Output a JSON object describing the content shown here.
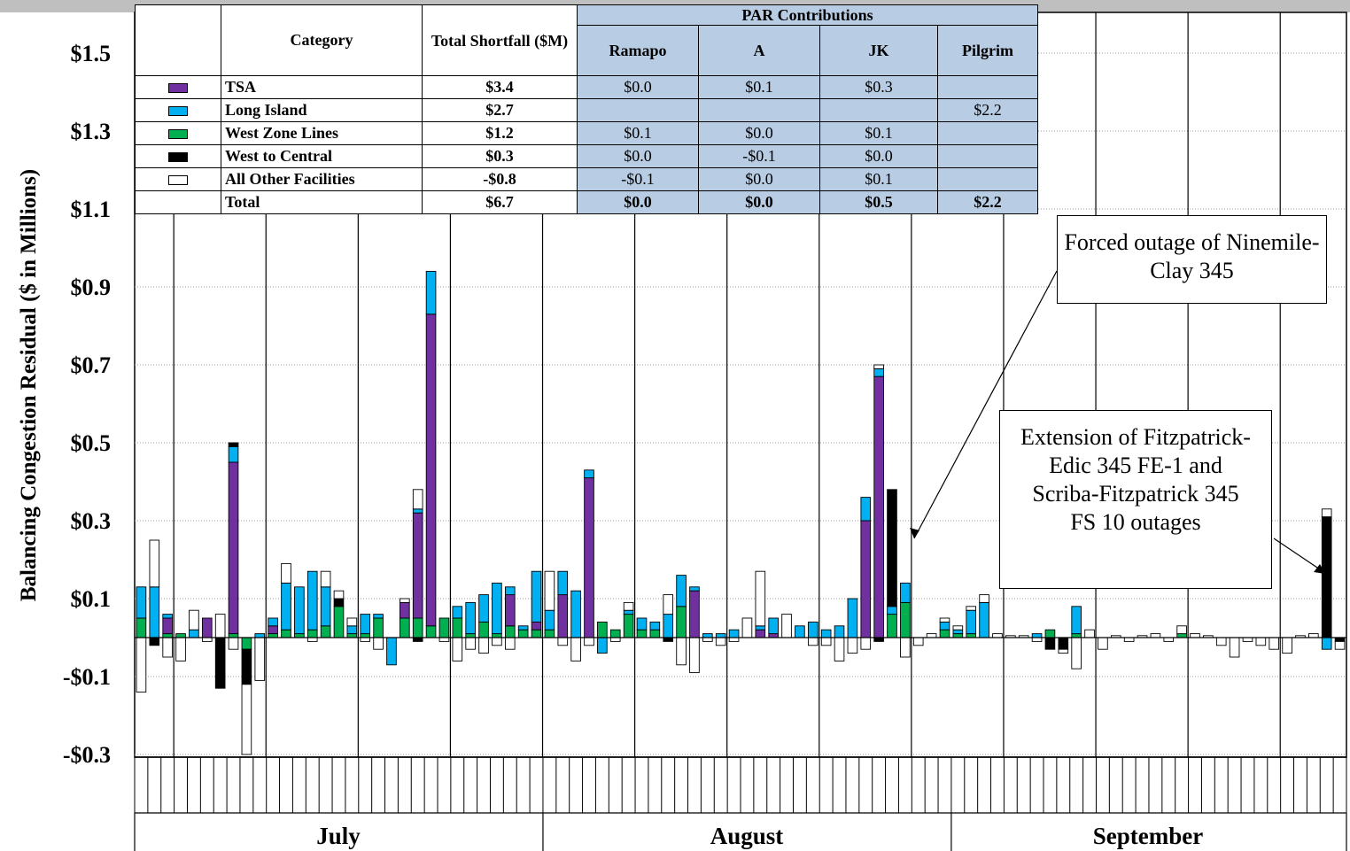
{
  "colors": {
    "TSA": "#7030a0",
    "Long Island": "#00b0f0",
    "West Zone Lines": "#00b050",
    "West to Central": "#000000",
    "All Other Facilities": "#ffffff",
    "par_header_bg": "#b8cce4"
  },
  "table": {
    "header": {
      "category": "Category",
      "total": "Total Shortfall ($M)",
      "par": "PAR Contributions",
      "ramapo": "Ramapo",
      "a": "A",
      "jk": "JK",
      "pilgrim": "Pilgrim"
    },
    "rows": [
      {
        "category": "TSA",
        "total": "$3.4",
        "ramapo": "$0.0",
        "a": "$0.1",
        "jk": "$0.3",
        "pilgrim": ""
      },
      {
        "category": "Long Island",
        "total": "$2.7",
        "ramapo": "",
        "a": "",
        "jk": "",
        "pilgrim": "$2.2"
      },
      {
        "category": "West Zone Lines",
        "total": "$1.2",
        "ramapo": "$0.1",
        "a": "$0.0",
        "jk": "$0.1",
        "pilgrim": ""
      },
      {
        "category": "West to Central",
        "total": "$0.3",
        "ramapo": "$0.0",
        "a": "-$0.1",
        "jk": "$0.0",
        "pilgrim": ""
      },
      {
        "category": "All Other Facilities",
        "total": "-$0.8",
        "ramapo": "-$0.1",
        "a": "$0.0",
        "jk": "$0.1",
        "pilgrim": ""
      }
    ],
    "total_row": {
      "category": "Total",
      "total": "$6.7",
      "ramapo": "$0.0",
      "a": "$0.0",
      "jk": "$0.5",
      "pilgrim": "$2.2"
    }
  },
  "annotations": {
    "forced_outage": "Forced outage of Ninemile-Clay 345",
    "extension": "Extension of Fitzpatrick-Edic 345 FE-1 and Scriba-Fitzpatrick 345 FS 10 outages"
  },
  "chart_data": {
    "type": "bar",
    "stacked": true,
    "ylabel": "Balancing Congestion Residual ($ in Millions)",
    "ylim": [
      -0.3,
      1.6
    ],
    "yticks": [
      1.5,
      1.3,
      1.1,
      0.9,
      0.7,
      0.5,
      0.3,
      0.1,
      -0.1,
      -0.3
    ],
    "ytick_labels": [
      "$1.5",
      "$1.3",
      "$1.1",
      "$0.9",
      "$0.7",
      "$0.5",
      "$0.3",
      "$0.1",
      "-$0.1",
      "-$0.3"
    ],
    "months": [
      "July",
      "August",
      "September"
    ],
    "days_per_month": [
      31,
      31,
      30
    ],
    "series_order": [
      "West Zone Lines",
      "TSA",
      "Long Island",
      "West to Central",
      "All Other Facilities"
    ],
    "days": [
      {
        "West Zone Lines": 0.05,
        "Long Island": 0.08,
        "All Other Facilities": -0.14
      },
      {
        "West to Central": -0.02,
        "All Other Facilities": 0.12,
        "Long Island": 0.13
      },
      {
        "West Zone Lines": 0.01,
        "TSA": 0.04,
        "Long Island": 0.01,
        "All Other Facilities": -0.05
      },
      {
        "West Zone Lines": 0.01,
        "All Other Facilities": -0.06
      },
      {
        "All Other Facilities": 0.05,
        "Long Island": 0.02
      },
      {
        "TSA": 0.05,
        "All Other Facilities": -0.01
      },
      {
        "All Other Facilities": 0.06,
        "West to Central": -0.13
      },
      {
        "West Zone Lines": 0.01,
        "West to Central": 0.01,
        "TSA": 0.44,
        "Long Island": 0.04,
        "All Other Facilities": -0.03
      },
      {
        "West Zone Lines": -0.03,
        "All Other Facilities": -0.18,
        "West to Central": -0.09
      },
      {
        "Long Issland": 0.0,
        "All Other Facilities": -0.11,
        "Long Island": 0.01
      },
      {
        "West Zone Lines": 0.01,
        "TSA": 0.02,
        "Long Island": 0.02
      },
      {
        "West Zone Lines": 0.02,
        "All Other Facilities": 0.05,
        "Long Island": 0.12
      },
      {
        "West Zone Lines": 0.01,
        "Long Island": 0.12
      },
      {
        "West Zone Lines": 0.02,
        "All Other Facilities": -0.01,
        "Long Island": 0.15
      },
      {
        "West Zone Lines": 0.03,
        "All Other Facilities": 0.04,
        "Long Island": 0.1
      },
      {
        "West Zone Lines": 0.08,
        "All Other Facilities": 0.02,
        "West to Central": 0.02
      },
      {
        "West Zone Lines": 0.01,
        "All Other Facilities": 0.02,
        "Long Island": 0.02
      },
      {
        "West Zone Lines": 0.01,
        "All Other Facilities": -0.01,
        "Long Island": 0.05
      },
      {
        "West Zone Lines": 0.05,
        "Long Island": 0.01,
        "All Other Facilities": -0.03
      },
      {
        "Long Island": -0.07
      },
      {
        "West Zone Lines": 0.05,
        "All Other Facilities": 0.01,
        "TSA": 0.04
      },
      {
        "West Zone Lines": 0.05,
        "All Other Facilities": 0.05,
        "TSA": 0.27,
        "Long Island": 0.01,
        "West to Central": -0.01
      },
      {
        "West Zone Lines": 0.03,
        "TSA": 0.8,
        "Long Island": 0.11
      },
      {
        "West Zone Lines": 0.05,
        "All Other Facilities": -0.01
      },
      {
        "West Zone Lines": 0.05,
        "Long Island": 0.03,
        "All Other Facilities": -0.06
      },
      {
        "West Zone Lines": 0.01,
        "Long Island": 0.08,
        "All Other Facilities": -0.03
      },
      {
        "West Zone Lines": 0.04,
        "Long Island": 0.07,
        "All Other Facilities": -0.04
      },
      {
        "West Zone Lines": 0.01,
        "Long Island": 0.13,
        "All Other Facilities": -0.02
      },
      {
        "West Zone Lines": 0.03,
        "TSA": 0.08,
        "Long Island": 0.02,
        "All Other Facilities": -0.03
      },
      {
        "West Zone Lines": 0.02,
        "Long Island": 0.01
      },
      {
        "West Zone Lines": 0.02,
        "TSA": 0.02,
        "Long Island": 0.13
      },
      {
        "West Zone Lines": 0.02,
        "All Other Facilities": 0.1,
        "Long Island": 0.05
      },
      {
        "TSA": 0.11,
        "Long Island": 0.06,
        "All Other Facilities": -0.02
      },
      {
        "Long Island": 0.12,
        "All Other Facilities": -0.06
      },
      {
        "TSA": 0.41,
        "Long Island": 0.02,
        "All Other Facilities": -0.02
      },
      {
        "West Zone Lines": 0.04,
        "Long Island": -0.04
      },
      {
        "West Zone Lines": 0.02,
        "All Other Facilities": -0.01
      },
      {
        "West Zone Lines": 0.06,
        "All Other Facilities": 0.02,
        "Long Island": 0.01
      },
      {
        "West Zone Lines": 0.02,
        "Long Island": 0.03
      },
      {
        "West Zone Lines": 0.02,
        "Long Island": 0.02
      },
      {
        "All Other Facilities": 0.05,
        "Long Island": 0.06,
        "West to Central": -0.01
      },
      {
        "West Zone Lines": 0.08,
        "Long Island": 0.08,
        "All Other Facilities": -0.07
      },
      {
        "TSA": 0.12,
        "Long Island": 0.01,
        "All Other Facilities": -0.09
      },
      {
        "Long Island": 0.01,
        "All Other Facilities": -0.01
      },
      {
        "Long Island": 0.01,
        "All Other Facilities": -0.02
      },
      {
        "Long Island": 0.02,
        "All Other Facilities": -0.01
      },
      {
        "All Other Facilities": 0.05
      },
      {
        "All Other Facilities": 0.14,
        "TSA": 0.02,
        "Long Island": 0.01
      },
      {
        "TSA": 0.01,
        "Long Island": 0.04
      },
      {
        "All Other Facilities": 0.06
      },
      {
        "Long Island": 0.03
      },
      {
        "Long Island": 0.04,
        "All Other Facilities": -0.02
      },
      {
        "Long Island": 0.02,
        "All Other Facilities": -0.02
      },
      {
        "Long Island": 0.03,
        "All Other Facilities": -0.06
      },
      {
        "Long Island": 0.1,
        "All Other Facilities": -0.04
      },
      {
        "TSA": 0.3,
        "Long Island": 0.06,
        "All Other Facilities": -0.03
      },
      {
        "TSA": 0.67,
        "Long Island": 0.02,
        "West to Central": -0.01,
        "All Other Facilities": 0.01
      },
      {
        "West Zone Lines": 0.06,
        "West to Central": 0.3,
        "Long Island": 0.02
      },
      {
        "West Zone Lines": 0.09,
        "Long Island": 0.05,
        "All Other Facilities": -0.05
      },
      {
        "All Other Facilities": -0.02
      },
      {
        "All Other Facilities": 0.01
      },
      {
        "West Zone Lines": 0.02,
        "All Other Facilities": 0.01,
        "Long Island": 0.02
      },
      {
        "West Zone Lines": 0.01,
        "All Other Facilities": 0.01,
        "Long Island": 0.01
      },
      {
        "West Zone Lines": 0.01,
        "All Other Facilities": 0.01,
        "Long Island": 0.06
      },
      {
        "All Other Facilities": 0.02,
        "Long Island": 0.09
      },
      {
        "All Other Facilities": 0.01
      },
      {
        "All Other Facilities": 0.005
      },
      {
        "All Other Facilities": 0.005
      },
      {
        "Long Island": 0.01,
        "All Other Facilities": -0.01
      },
      {
        "West Zone Lines": 0.02,
        "West to Central": -0.03
      },
      {
        "All Other Facilities": -0.01,
        "West to Central": -0.03
      },
      {
        "West Zone Lines": 0.01,
        "Long Island": 0.07,
        "All Other Facilities": -0.08
      },
      {
        "All Other Facilities": 0.02,
        "All Other Facilities2": 0.0
      },
      {
        "All Other Facilities": -0.03
      },
      {
        "All Other Facilities": 0.005
      },
      {
        "All Other Facilities": -0.01
      },
      {
        "All Other Facilities": 0.005
      },
      {
        "All Other Facilities": 0.01
      },
      {
        "All Other Facilities": -0.01
      },
      {
        "West Zone Lines": 0.01,
        "All Other Facilities": 0.02
      },
      {
        "All Other Facilities": 0.01
      },
      {
        "All Other Facilities": 0.005
      },
      {
        "All Other Facilities": -0.02
      },
      {
        "All Other Facilities": -0.05
      },
      {
        "All Other Facilities": -0.01
      },
      {
        "All Other Facilities": -0.02
      },
      {
        "All Other Facilities": -0.03
      },
      {
        "All Other Facilities": -0.04
      },
      {
        "All Other Facilities": 0.005
      },
      {
        "All Other Facilities": 0.01
      },
      {
        "All Other Facilities": 0.02,
        "West to Central": 0.31,
        "Long Island": -0.03
      },
      {
        "All Other Facilities": -0.02,
        "West to Central": -0.01
      }
    ]
  }
}
